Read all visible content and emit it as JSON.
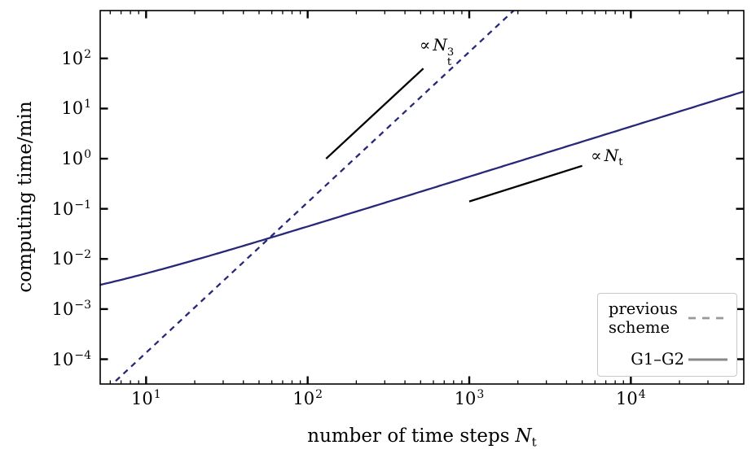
{
  "figure": {
    "background": "#ffffff",
    "axis_color": "#000000"
  },
  "chart_data": {
    "type": "line",
    "title": "",
    "xlabel": {
      "text": "number of time steps",
      "var": "N",
      "sub": "t"
    },
    "ylabel": "computing time/min",
    "xscale": "log",
    "yscale": "log",
    "grid": false,
    "xlim": [
      5.2,
      50000
    ],
    "ylim": [
      3.2e-05,
      900
    ],
    "xticks": {
      "base": "10",
      "major_exponents": [
        1,
        2,
        3,
        4
      ],
      "minor": "log-subdecade"
    },
    "yticks": {
      "base": "10",
      "major_exponents": [
        -4,
        -3,
        -2,
        -1,
        0,
        1,
        2
      ],
      "minor": "none"
    },
    "series": [
      {
        "name": "previous scheme",
        "line_style": "dashed",
        "color": "#28287a",
        "model": "power_law",
        "exponent": 3,
        "anchor": {
          "x": 57,
          "y": 0.025
        },
        "visible_x_range": [
          6.1,
          1880
        ],
        "sample_points": [
          [
            6.1,
            3.2e-05
          ],
          [
            57,
            0.025
          ],
          [
            500,
            17
          ],
          [
            1880,
            900
          ]
        ]
      },
      {
        "name": "G1–G2",
        "line_style": "solid",
        "color": "#28287a",
        "model": "affine",
        "intercept": 0.00077,
        "slope": 0.000437,
        "visible_x_range": [
          5.2,
          50000
        ],
        "sample_points": [
          [
            5.2,
            0.003
          ],
          [
            57,
            0.0257
          ],
          [
            1000,
            0.44
          ],
          [
            50000,
            21.7
          ]
        ]
      }
    ],
    "guide_lines": [
      {
        "name": "cubic slope guide",
        "color": "#000000",
        "x1": 130,
        "y1": 1.0,
        "x2": 520,
        "y2": 63
      },
      {
        "name": "linear slope guide",
        "color": "#000000",
        "x1": 1000,
        "y1": 0.14,
        "x2": 5000,
        "y2": 0.72
      }
    ],
    "annotations": [
      {
        "symbol": "∝",
        "var": "N",
        "sub": "t",
        "sup": "3",
        "x": 629,
        "y": 139
      },
      {
        "symbol": "∝",
        "var": "N",
        "sub": "t",
        "x": 7100,
        "y": 1.16
      }
    ],
    "legend": {
      "position": "lower right",
      "entries": [
        {
          "label": "previous scheme",
          "label_lines": [
            "previous",
            "scheme"
          ],
          "line_style": "dashed",
          "handle_color": "#999999"
        },
        {
          "label": "G1–G2",
          "line_style": "solid",
          "handle_color": "#888888"
        }
      ]
    }
  }
}
